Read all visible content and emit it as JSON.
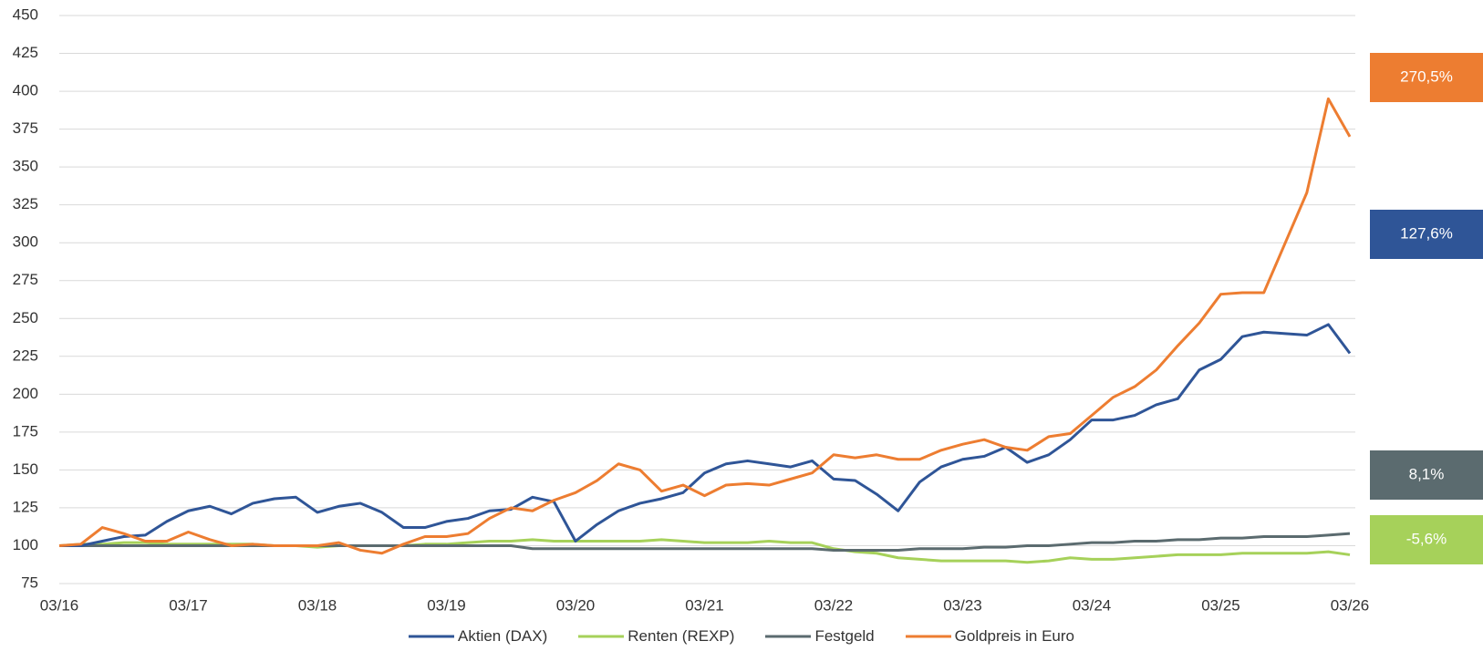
{
  "chart_data": {
    "type": "line",
    "categories": [
      "03/16",
      null,
      null,
      null,
      null,
      null,
      "03/17",
      null,
      null,
      null,
      null,
      null,
      "03/18",
      null,
      null,
      null,
      null,
      null,
      "03/19",
      null,
      null,
      null,
      null,
      null,
      "03/20",
      null,
      null,
      null,
      null,
      null,
      "03/21",
      null,
      null,
      null,
      null,
      null,
      "03/22",
      null,
      null,
      null,
      null,
      null,
      "03/23",
      null,
      null,
      null,
      null,
      null,
      "03/24",
      null,
      null,
      null,
      null,
      null,
      "03/25",
      null,
      null,
      null,
      null,
      null,
      "03/26"
    ],
    "series": [
      {
        "name": "Aktien (DAX)",
        "color": "#2f5597",
        "end_label": "127,6%",
        "values": [
          100,
          100,
          103,
          106,
          107,
          116,
          123,
          126,
          121,
          128,
          131,
          132,
          122,
          126,
          128,
          122,
          112,
          112,
          116,
          118,
          123,
          124,
          132,
          129,
          103,
          114,
          123,
          128,
          131,
          135,
          148,
          154,
          156,
          154,
          152,
          156,
          144,
          143,
          134,
          123,
          142,
          152,
          157,
          159,
          165,
          155,
          160,
          170,
          183,
          183,
          186,
          193,
          197,
          216,
          223,
          238,
          241,
          240,
          239,
          246,
          227
        ]
      },
      {
        "name": "Renten (REXP)",
        "color": "#a6d15a",
        "end_label": "-5,6%",
        "values": [
          100,
          101,
          101,
          102,
          102,
          101,
          101,
          101,
          101,
          101,
          100,
          100,
          99,
          100,
          100,
          100,
          100,
          101,
          101,
          102,
          103,
          103,
          104,
          103,
          103,
          103,
          103,
          103,
          104,
          103,
          102,
          102,
          102,
          103,
          102,
          102,
          98,
          96,
          95,
          92,
          91,
          90,
          90,
          90,
          90,
          89,
          90,
          92,
          91,
          91,
          92,
          93,
          94,
          94,
          94,
          95,
          95,
          95,
          95,
          96,
          94
        ]
      },
      {
        "name": "Festgeld",
        "color": "#5b6b6f",
        "end_label": "8,1%",
        "values": [
          100,
          100,
          100,
          100,
          100,
          100,
          100,
          100,
          100,
          100,
          100,
          100,
          100,
          100,
          100,
          100,
          100,
          100,
          100,
          100,
          100,
          100,
          98,
          98,
          98,
          98,
          98,
          98,
          98,
          98,
          98,
          98,
          98,
          98,
          98,
          98,
          97,
          97,
          97,
          97,
          98,
          98,
          98,
          99,
          99,
          100,
          100,
          101,
          102,
          102,
          103,
          103,
          104,
          104,
          105,
          105,
          106,
          106,
          106,
          107,
          108
        ]
      },
      {
        "name": "Goldpreis in Euro",
        "color": "#ed7d31",
        "end_label": "270,5%",
        "values": [
          100,
          101,
          112,
          108,
          103,
          103,
          109,
          104,
          100,
          101,
          100,
          100,
          100,
          102,
          97,
          95,
          101,
          106,
          106,
          108,
          118,
          125,
          123,
          130,
          135,
          143,
          154,
          150,
          136,
          140,
          133,
          140,
          141,
          140,
          144,
          148,
          160,
          158,
          160,
          157,
          157,
          163,
          167,
          170,
          165,
          163,
          172,
          174,
          186,
          198,
          205,
          216,
          232,
          247,
          266,
          267,
          267,
          300,
          333,
          395,
          370
        ]
      }
    ],
    "ylim": [
      75,
      450
    ],
    "yticks": [
      75,
      100,
      125,
      150,
      175,
      200,
      225,
      250,
      275,
      300,
      325,
      350,
      375,
      400,
      425,
      450
    ],
    "grid": true,
    "legend": "bottom"
  }
}
